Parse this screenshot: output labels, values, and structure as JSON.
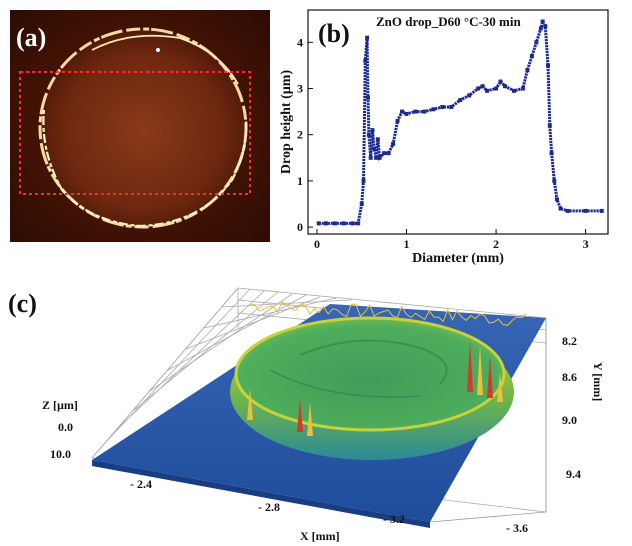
{
  "panels": {
    "a": {
      "label": "(a)"
    },
    "b": {
      "label": "(b)"
    },
    "c": {
      "label": "(c)"
    }
  },
  "colors": {
    "line_profile": "#1f2a8f",
    "roi_box": "#ff2a2a",
    "surface_base": "#2c58a8",
    "rim_high": "#d23a2a",
    "rim_mid": "#e9c23a",
    "inner": "#49a85a"
  },
  "chart_data": [
    {
      "type": "line",
      "panel": "b",
      "title": "ZnO drop_D60 °C-30 min",
      "xlabel": "Diameter (mm)",
      "ylabel": "Drop height (µm)",
      "xlim": [
        -0.1,
        3.25
      ],
      "ylim": [
        -0.15,
        4.7
      ],
      "xticks": [
        "0",
        "1",
        "2",
        "3"
      ],
      "xtick_values": [
        0,
        1,
        2,
        3
      ],
      "yticks": [
        "0",
        "1",
        "2",
        "3",
        "4"
      ],
      "ytick_values": [
        0,
        1,
        2,
        3,
        4
      ],
      "grid": false,
      "series": [
        {
          "name": "",
          "x": [
            0.02,
            0.1,
            0.2,
            0.3,
            0.4,
            0.46,
            0.5,
            0.52,
            0.54,
            0.56,
            0.57,
            0.58,
            0.6,
            0.62,
            0.64,
            0.66,
            0.68,
            0.7,
            0.75,
            0.8,
            0.85,
            0.9,
            0.95,
            1.0,
            1.1,
            1.2,
            1.3,
            1.4,
            1.5,
            1.6,
            1.7,
            1.8,
            1.85,
            1.9,
            2.0,
            2.05,
            2.1,
            2.2,
            2.3,
            2.35,
            2.4,
            2.45,
            2.5,
            2.52,
            2.55,
            2.58,
            2.6,
            2.62,
            2.65,
            2.68,
            2.72,
            2.8,
            3.0,
            3.18
          ],
          "y": [
            0.08,
            0.08,
            0.08,
            0.08,
            0.08,
            0.08,
            0.5,
            1.0,
            3.6,
            4.1,
            2.8,
            2.0,
            1.5,
            2.1,
            1.7,
            1.5,
            1.9,
            1.5,
            1.6,
            1.6,
            1.8,
            2.3,
            2.5,
            2.45,
            2.5,
            2.5,
            2.55,
            2.6,
            2.6,
            2.75,
            2.85,
            3.0,
            3.05,
            2.95,
            3.0,
            3.15,
            3.05,
            2.95,
            3.0,
            3.4,
            3.7,
            4.0,
            4.3,
            4.45,
            4.35,
            3.5,
            2.2,
            1.6,
            1.0,
            0.6,
            0.4,
            0.35,
            0.35,
            0.35
          ]
        }
      ]
    },
    {
      "type": "surface3d",
      "panel": "c",
      "zlabel": "Z [µm]",
      "zticks": [
        "0.0",
        "10.0"
      ],
      "xlabel": "X [mm]",
      "xticks": [
        "- 2.4",
        "- 2.8",
        "- 3.2",
        "- 3.6"
      ],
      "ylabel": "Y [mm]",
      "yticks": [
        "8.2",
        "8.6",
        "9.0",
        "9.4"
      ]
    }
  ]
}
